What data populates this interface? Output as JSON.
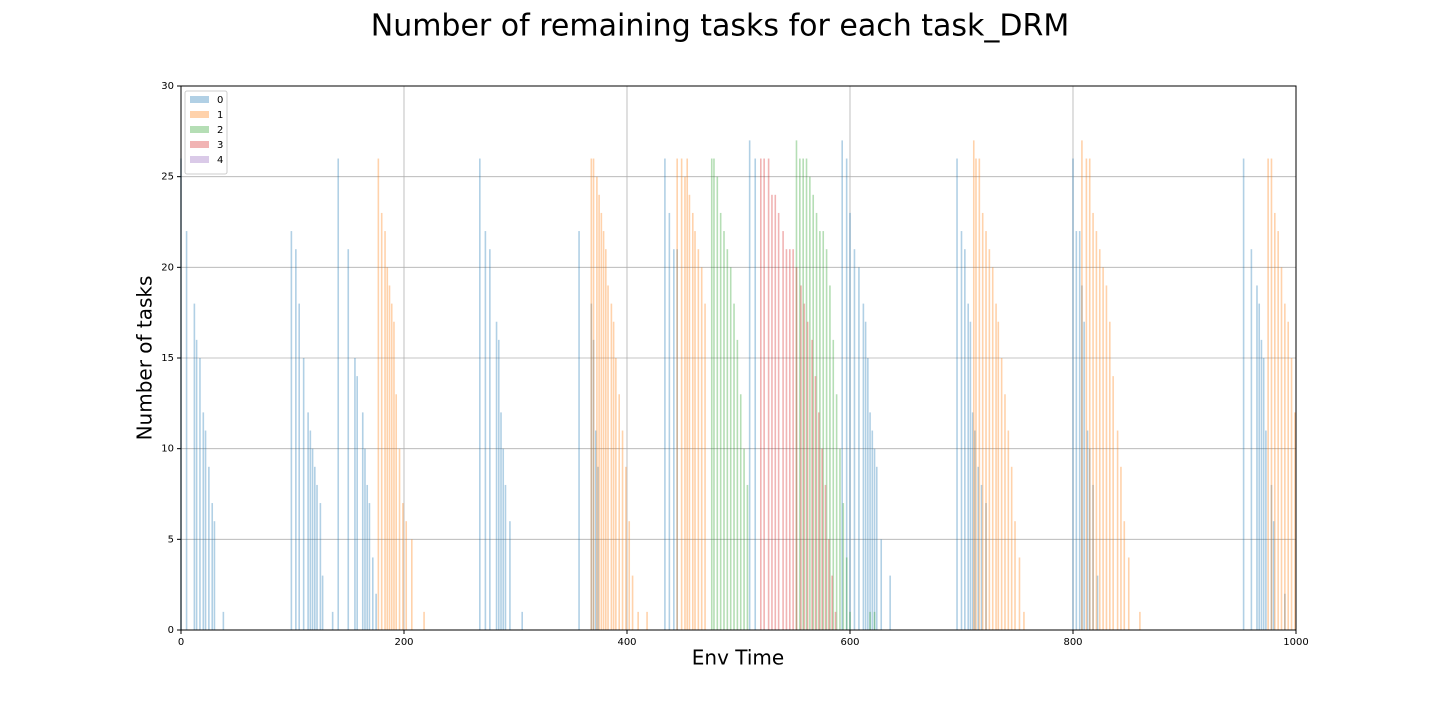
{
  "chart_data": {
    "type": "bar",
    "title": "Number of remaining tasks for each task_DRM",
    "x_label": "Env Time",
    "y_label": "Number of tasks",
    "xlim": [
      0,
      1000
    ],
    "ylim": [
      0,
      30
    ],
    "xticks": [
      0,
      200,
      400,
      600,
      800,
      1000
    ],
    "yticks": [
      0,
      5,
      10,
      15,
      20,
      25,
      30
    ],
    "grid": true,
    "legend": "upper left",
    "series": [
      {
        "name": "0",
        "color": "#1f77b4",
        "x": [
          0,
          5,
          12,
          14,
          17,
          20,
          22,
          25,
          28,
          30,
          38,
          99,
          103,
          106,
          110,
          114,
          116,
          118,
          120,
          122,
          125,
          127,
          136,
          141,
          150,
          156,
          158,
          163,
          165,
          167,
          169,
          172,
          175,
          268,
          273,
          277,
          283,
          285,
          287,
          289,
          291,
          295,
          306,
          357,
          368,
          370,
          372,
          374,
          434,
          438,
          442,
          445,
          510,
          515,
          593,
          597,
          600,
          604,
          608,
          612,
          614,
          616,
          618,
          620,
          622,
          624,
          628,
          636,
          696,
          700,
          703,
          706,
          708,
          710,
          712,
          715,
          718,
          722,
          800,
          803,
          806,
          808,
          810,
          813,
          815,
          818,
          822,
          953,
          960,
          965,
          967,
          969,
          971,
          973,
          978,
          980,
          990
        ],
        "values": [
          26,
          22,
          18,
          16,
          15,
          12,
          11,
          9,
          7,
          6,
          1,
          22,
          21,
          18,
          15,
          12,
          11,
          10,
          9,
          8,
          7,
          3,
          1,
          26,
          21,
          15,
          14,
          12,
          10,
          8,
          7,
          4,
          2,
          26,
          22,
          21,
          17,
          16,
          12,
          10,
          8,
          6,
          1,
          22,
          18,
          16,
          11,
          9,
          26,
          23,
          21,
          21,
          27,
          26,
          27,
          26,
          23,
          21,
          20,
          18,
          17,
          15,
          12,
          11,
          10,
          9,
          5,
          3,
          26,
          22,
          21,
          18,
          17,
          12,
          11,
          9,
          8,
          7,
          26,
          22,
          22,
          19,
          17,
          11,
          10,
          8,
          3,
          26,
          21,
          19,
          18,
          16,
          15,
          11,
          8,
          6,
          2
        ]
      },
      {
        "name": "1",
        "color": "#ff7f0e",
        "x": [
          177,
          180,
          183,
          185,
          187,
          189,
          191,
          193,
          196,
          199,
          202,
          207,
          218,
          368,
          370,
          373,
          375,
          377,
          379,
          381,
          383,
          386,
          388,
          390,
          393,
          396,
          399,
          402,
          405,
          410,
          418,
          445,
          449,
          452,
          454,
          456,
          459,
          461,
          464,
          467,
          470,
          711,
          713,
          716,
          719,
          722,
          725,
          728,
          731,
          733,
          736,
          739,
          742,
          745,
          748,
          752,
          756,
          808,
          812,
          815,
          818,
          821,
          824,
          827,
          830,
          833,
          836,
          840,
          843,
          846,
          850,
          860,
          975,
          978,
          981,
          984,
          987,
          990,
          993,
          996,
          999
        ],
        "values": [
          26,
          23,
          22,
          20,
          19,
          18,
          17,
          13,
          10,
          7,
          6,
          5,
          1,
          26,
          26,
          25,
          24,
          23,
          22,
          21,
          19,
          18,
          17,
          15,
          13,
          11,
          9,
          6,
          3,
          1,
          1,
          26,
          26,
          25,
          26,
          24,
          23,
          22,
          21,
          20,
          18,
          27,
          26,
          26,
          23,
          22,
          21,
          20,
          18,
          17,
          15,
          13,
          11,
          9,
          6,
          4,
          1,
          27,
          26,
          26,
          23,
          22,
          21,
          20,
          19,
          17,
          14,
          11,
          9,
          6,
          4,
          1,
          26,
          26,
          23,
          22,
          20,
          18,
          17,
          15,
          12
        ]
      },
      {
        "name": "2",
        "color": "#2ca02c",
        "x": [
          476,
          478,
          481,
          484,
          487,
          490,
          493,
          496,
          499,
          502,
          505,
          508,
          552,
          555,
          558,
          561,
          564,
          567,
          570,
          573,
          576,
          579,
          582,
          585,
          588,
          591,
          594,
          597,
          600,
          618,
          622
        ],
        "values": [
          26,
          26,
          25,
          23,
          22,
          21,
          20,
          18,
          16,
          13,
          10,
          8,
          27,
          26,
          26,
          26,
          25,
          24,
          23,
          22,
          22,
          21,
          19,
          16,
          13,
          10,
          7,
          4,
          1,
          1,
          1
        ]
      },
      {
        "name": "3",
        "color": "#d62728",
        "x": [
          520,
          523,
          527,
          530,
          533,
          536,
          540,
          543,
          546,
          549,
          552,
          556,
          559,
          562,
          566,
          569,
          572,
          575,
          578,
          581,
          584,
          587
        ],
        "values": [
          26,
          26,
          26,
          24,
          24,
          23,
          22,
          21,
          21,
          21,
          20,
          19,
          18,
          17,
          16,
          14,
          12,
          10,
          8,
          5,
          3,
          1
        ]
      },
      {
        "name": "4",
        "color": "#9467bd",
        "x": [],
        "values": []
      }
    ]
  }
}
